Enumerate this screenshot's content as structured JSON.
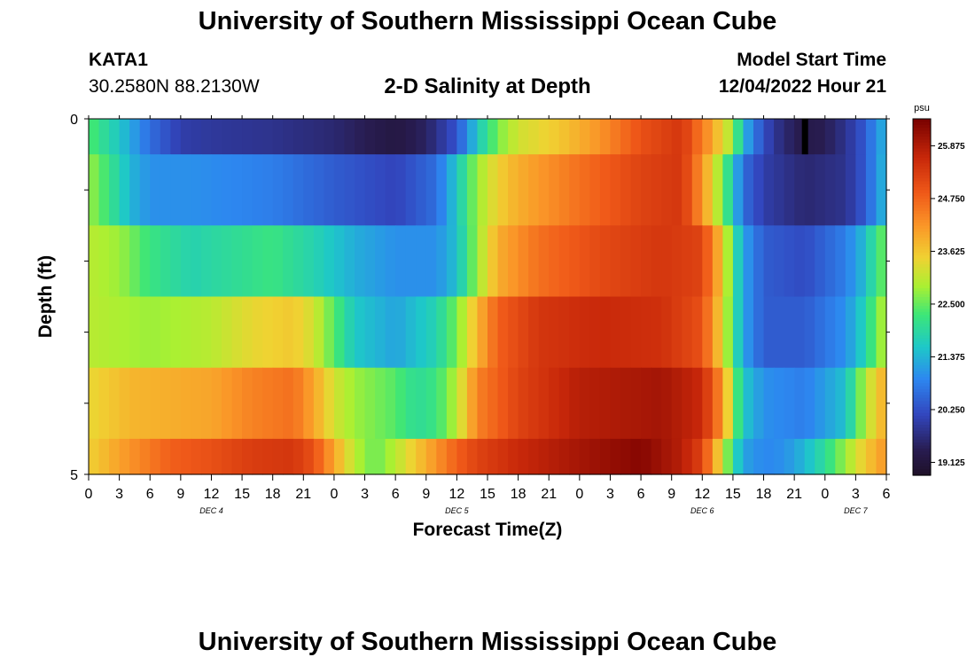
{
  "header": {
    "title": "University of Southern Mississippi Ocean Cube",
    "station": "KATA1",
    "coords": "30.2580N  88.2130W",
    "subtitle": "2-D Salinity at Depth",
    "mst_label": "Model Start Time",
    "mst_value": "12/04/2022 Hour 21"
  },
  "footer": {
    "title": "University of Southern Mississippi Ocean Cube"
  },
  "chart_data": {
    "type": "heatmap",
    "title": "2-D Salinity at Depth",
    "xlabel": "Forecast Time(Z)",
    "ylabel": "Depth (ft)",
    "x_range_hours": [
      0,
      78
    ],
    "x_tick_labels": [
      "0",
      "3",
      "6",
      "9",
      "12",
      "15",
      "18",
      "21",
      "0",
      "3",
      "6",
      "9",
      "12",
      "15",
      "18",
      "21",
      "0",
      "3",
      "6",
      "9",
      "12",
      "15",
      "18",
      "21",
      "0",
      "3",
      "6"
    ],
    "day_labels": [
      {
        "label": "DEC 4",
        "hour": 12
      },
      {
        "label": "DEC 5",
        "hour": 36
      },
      {
        "label": "DEC 6",
        "hour": 60
      },
      {
        "label": "DEC 7",
        "hour": 75
      }
    ],
    "y_range_ft": [
      0,
      5
    ],
    "y_tick_labels": [
      "0",
      "5"
    ],
    "depth_layers_ft": [
      0.25,
      1.0,
      2.0,
      3.0,
      4.0,
      4.75
    ],
    "layer_bounds_ft": [
      0,
      0.5,
      1.5,
      2.5,
      3.5,
      4.5,
      5
    ],
    "colorbar": {
      "unit": "psu",
      "min": 18.85,
      "max": 26.45,
      "ticks": [
        19.125,
        20.25,
        21.375,
        22.5,
        23.625,
        24.75,
        25.875
      ],
      "tick_labels": [
        "19.125",
        "20.250",
        "21.375",
        "22.500",
        "23.625",
        "24.750",
        "25.875"
      ]
    },
    "series": [
      {
        "name": "layer-0-ft",
        "hours": [
          0,
          3,
          6,
          9,
          12,
          18,
          24,
          30,
          33,
          36,
          38,
          40,
          42,
          46,
          50,
          54,
          58,
          61,
          63,
          64,
          66,
          68,
          70,
          72,
          74,
          76,
          77,
          78
        ],
        "values": [
          22.4,
          21.6,
          20.6,
          20.0,
          19.9,
          19.8,
          19.6,
          19.2,
          19.5,
          20.3,
          21.6,
          22.6,
          23.2,
          23.6,
          24.2,
          25.0,
          25.4,
          24.0,
          22.8,
          21.4,
          20.2,
          19.6,
          19.3,
          19.4,
          19.8,
          20.4,
          21.0,
          21.4
        ]
      },
      {
        "name": "layer-1-ft",
        "hours": [
          0,
          2,
          4,
          6,
          10,
          18,
          24,
          30,
          34,
          36,
          38,
          40,
          42,
          48,
          54,
          58,
          60,
          62,
          63,
          64,
          66,
          70,
          74,
          76,
          77,
          78
        ],
        "values": [
          22.8,
          22.2,
          21.4,
          21.0,
          21.0,
          20.8,
          20.4,
          20.1,
          20.6,
          21.6,
          22.8,
          23.5,
          23.9,
          24.6,
          25.2,
          25.4,
          24.2,
          22.6,
          21.6,
          20.6,
          20.0,
          19.6,
          19.8,
          20.4,
          21.0,
          21.5
        ]
      },
      {
        "name": "layer-2-ft",
        "hours": [
          0,
          3,
          6,
          10,
          18,
          22,
          26,
          30,
          34,
          36,
          38,
          40,
          44,
          50,
          56,
          60,
          62,
          63,
          64,
          66,
          70,
          74,
          76,
          77,
          78
        ],
        "values": [
          23.0,
          22.8,
          22.2,
          21.8,
          22.2,
          21.8,
          21.3,
          21.0,
          21.0,
          21.5,
          22.8,
          23.9,
          24.6,
          25.1,
          25.4,
          25.2,
          23.6,
          22.2,
          21.2,
          20.4,
          20.2,
          20.8,
          21.5,
          22.2,
          22.6
        ]
      },
      {
        "name": "layer-3-ft",
        "hours": [
          0,
          6,
          12,
          16,
          20,
          22,
          24,
          26,
          30,
          34,
          36,
          38,
          40,
          44,
          50,
          56,
          60,
          62,
          63,
          64,
          66,
          70,
          74,
          76,
          77,
          78
        ],
        "values": [
          23.0,
          22.8,
          23.0,
          23.4,
          23.6,
          23.2,
          22.4,
          21.6,
          21.2,
          21.8,
          22.6,
          23.8,
          24.8,
          25.4,
          25.6,
          25.5,
          25.0,
          23.4,
          22.2,
          21.2,
          20.4,
          20.4,
          21.0,
          21.8,
          22.6,
          23.0
        ]
      },
      {
        "name": "layer-4-ft",
        "hours": [
          0,
          4,
          8,
          12,
          16,
          20,
          22,
          24,
          26,
          30,
          32,
          34,
          36,
          38,
          42,
          48,
          56,
          60,
          62,
          63,
          64,
          66,
          70,
          74,
          76,
          78
        ],
        "values": [
          23.4,
          23.8,
          23.9,
          24.0,
          24.4,
          24.6,
          24.0,
          23.2,
          22.8,
          22.4,
          22.0,
          22.2,
          23.0,
          24.4,
          25.2,
          25.8,
          26.0,
          25.6,
          24.2,
          22.8,
          21.6,
          21.0,
          20.8,
          21.5,
          23.0,
          24.0
        ]
      },
      {
        "name": "layer-5-ft",
        "hours": [
          0,
          4,
          8,
          12,
          16,
          20,
          22,
          24,
          26,
          28,
          30,
          32,
          34,
          36,
          38,
          42,
          50,
          54,
          58,
          60,
          61,
          62,
          63,
          64,
          66,
          68,
          70,
          72,
          74,
          76,
          78
        ],
        "values": [
          23.5,
          24.2,
          24.8,
          25.0,
          25.3,
          25.4,
          25.0,
          24.0,
          23.0,
          22.5,
          23.0,
          23.6,
          24.2,
          24.8,
          25.2,
          25.6,
          26.1,
          26.3,
          25.8,
          25.2,
          24.2,
          23.2,
          22.0,
          21.2,
          20.9,
          21.0,
          21.4,
          22.0,
          22.8,
          23.6,
          24.2
        ]
      }
    ],
    "missing_data_marker": {
      "hour": 70,
      "depth_layer": 0
    }
  }
}
